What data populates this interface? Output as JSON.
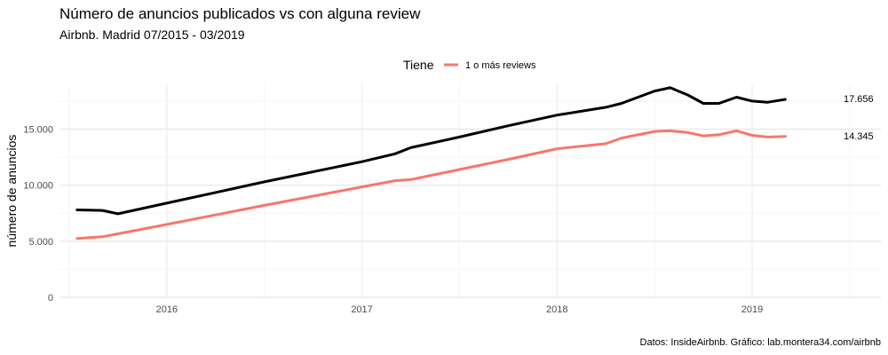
{
  "title": "Número de anuncios publicados vs con alguna review",
  "subtitle": "Airbnb. Madrid 07/2015 - 03/2019",
  "caption": "Datos: InsideAirbnb. Gráfico: lab.montera34.com/airbnb",
  "chart_data": {
    "type": "line",
    "ylabel": "número de anuncios",
    "xlabel": "",
    "ylim": [
      0,
      19000
    ],
    "xlim": [
      2015.45,
      2019.66
    ],
    "yticks": [
      {
        "value": 0,
        "label": "0"
      },
      {
        "value": 5000,
        "label": "5.000"
      },
      {
        "value": 10000,
        "label": "10.000"
      },
      {
        "value": 15000,
        "label": "15.000"
      }
    ],
    "xticks": [
      {
        "value": 2016,
        "label": "2016"
      },
      {
        "value": 2017,
        "label": "2017"
      },
      {
        "value": 2018,
        "label": "2018"
      },
      {
        "value": 2019,
        "label": "2019"
      }
    ],
    "grid": true,
    "legend": {
      "position": "top",
      "title": "Tiene",
      "entries": [
        {
          "label": "1 o más reviews",
          "color": "#F8766D"
        }
      ]
    },
    "series": [
      {
        "color": "#000000",
        "end_label": "17.656",
        "x": [
          2015.54,
          2015.67,
          2015.75,
          2016.0,
          2016.5,
          2017.0,
          2017.17,
          2017.25,
          2017.5,
          2017.75,
          2018.0,
          2018.25,
          2018.33,
          2018.5,
          2018.58,
          2018.67,
          2018.75,
          2018.83,
          2018.92,
          2019.0,
          2019.08,
          2019.17
        ],
        "y": [
          7800,
          7750,
          7450,
          8400,
          10300,
          12100,
          12800,
          13350,
          14300,
          15300,
          16250,
          16950,
          17300,
          18400,
          18700,
          18050,
          17300,
          17300,
          17850,
          17500,
          17400,
          17656
        ]
      },
      {
        "name": "1 o más reviews",
        "color": "#F8766D",
        "end_label": "14.345",
        "x": [
          2015.54,
          2015.67,
          2016.0,
          2016.5,
          2017.0,
          2017.17,
          2017.25,
          2017.5,
          2017.75,
          2018.0,
          2018.25,
          2018.33,
          2018.5,
          2018.58,
          2018.67,
          2018.75,
          2018.83,
          2018.92,
          2019.0,
          2019.08,
          2019.17
        ],
        "y": [
          5250,
          5400,
          6500,
          8200,
          9850,
          10400,
          10500,
          11400,
          12300,
          13250,
          13700,
          14200,
          14800,
          14850,
          14700,
          14400,
          14500,
          14850,
          14450,
          14300,
          14345
        ]
      }
    ]
  }
}
